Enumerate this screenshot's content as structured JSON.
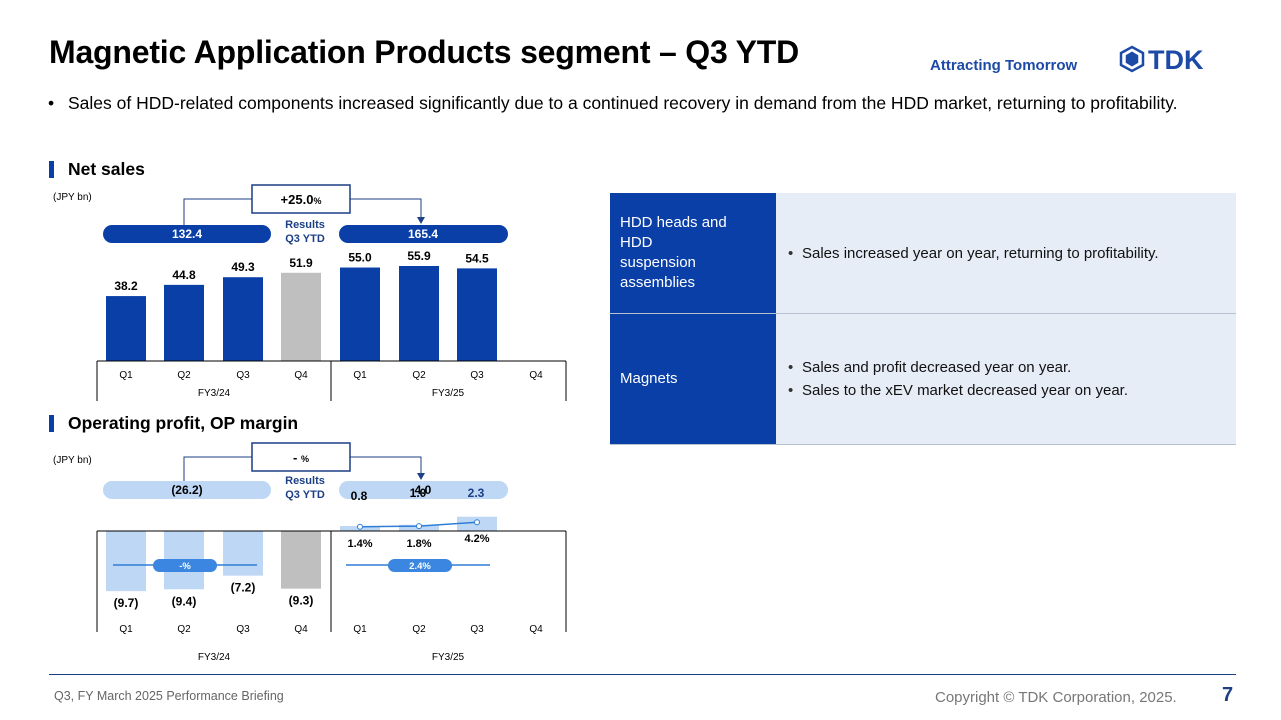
{
  "header": {
    "title": "Magnetic Application Products segment – Q3 YTD",
    "tagline": "Attracting Tomorrow",
    "logo_text": "TDK"
  },
  "bullet": "Sales of HDD-related components increased significantly due to a continued recovery in demand from the HDD market, returning to profitability.",
  "chart_data": [
    {
      "type": "bar",
      "title": "Net sales",
      "unit": "(JPY bn)",
      "categories": [
        "Q1",
        "Q2",
        "Q3",
        "Q4",
        "Q1",
        "Q2",
        "Q3",
        "Q4"
      ],
      "groups": [
        "FY3/24",
        "FY3/25"
      ],
      "values": [
        38.2,
        44.8,
        49.3,
        51.9,
        55.0,
        55.9,
        54.5,
        null
      ],
      "labels": [
        "38.2",
        "44.8",
        "49.3",
        "51.9",
        "55.0",
        "55.9",
        "54.5",
        ""
      ],
      "highlight_index": 3,
      "colors": {
        "bar": "#0a3fa8",
        "highlight": "#bfbfbf"
      },
      "ytd": {
        "prev": "132.4",
        "curr": "165.4",
        "change": "+25.0",
        "change_unit": "%",
        "label": [
          "Results",
          "Q3 YTD"
        ]
      }
    },
    {
      "type": "bar",
      "title": "Operating profit, OP margin",
      "unit": "(JPY bn)",
      "categories": [
        "Q1",
        "Q2",
        "Q3",
        "Q4",
        "Q1",
        "Q2",
        "Q3",
        "Q4"
      ],
      "groups": [
        "FY3/24",
        "FY3/25"
      ],
      "values": [
        -9.7,
        -9.4,
        -7.2,
        -9.3,
        0.8,
        1.0,
        2.3,
        null
      ],
      "labels": [
        "(9.7)",
        "(9.4)",
        "(7.2)",
        "(9.3)",
        "0.8",
        "1.0",
        "2.3",
        ""
      ],
      "margin_series": [
        null,
        null,
        null,
        null,
        1.4,
        1.8,
        4.2,
        null
      ],
      "margin_labels": [
        "",
        "",
        "",
        "",
        "1.4%",
        "1.8%",
        "4.2%",
        ""
      ],
      "margin_avg": [
        "-%",
        "2.4%"
      ],
      "highlight_index": 3,
      "colors": {
        "bar": "#bdd7f5",
        "highlight": "#bfbfbf",
        "line": "#2f7fd6",
        "pill": "#3a86e0"
      },
      "ytd": {
        "prev": "(26.2)",
        "curr": "4.0",
        "change": "- ",
        "change_unit": "%",
        "label": [
          "Results",
          "Q3 YTD"
        ]
      }
    }
  ],
  "segments": [
    {
      "name": "HDD heads and HDD suspension assemblies",
      "points": [
        "Sales increased year on year, returning to profitability."
      ]
    },
    {
      "name": "Magnets",
      "points": [
        "Sales and profit decreased year on year.",
        "Sales to the xEV market decreased year on year."
      ]
    }
  ],
  "footer": {
    "left": "Q3, FY March 2025 Performance Briefing",
    "copyright": "Copyright © TDK Corporation, 2025.",
    "page": "7"
  }
}
